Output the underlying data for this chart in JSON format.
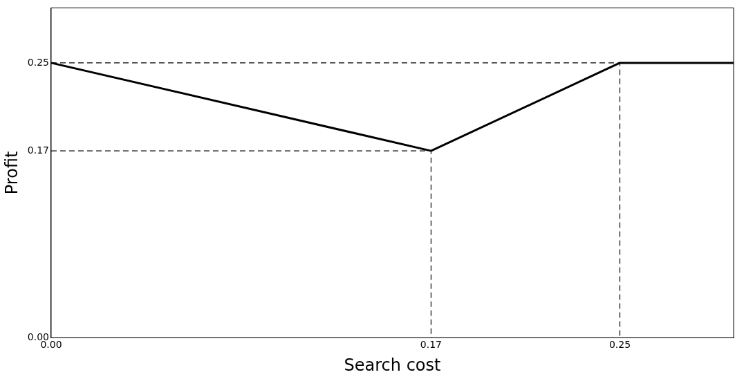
{
  "chart_data": {
    "type": "line",
    "xlabel": "Search cost",
    "ylabel": "Profit",
    "xlim": [
      0,
      0.3
    ],
    "ylim": [
      0,
      0.3
    ],
    "xticks": [
      {
        "value": 0,
        "label": "0.00"
      },
      {
        "value": 0.167,
        "label": "0.17"
      },
      0.25
    ],
    "yticks": [
      {
        "value": 0,
        "label": "0.00"
      },
      0.17,
      0.25
    ],
    "grid": false,
    "legend": false,
    "marker": "none",
    "series": [
      {
        "color": "#000000",
        "line_style": "solid",
        "x": [
          0,
          0.167,
          0.25,
          0.3
        ],
        "values": [
          0.25,
          0.17,
          0.25,
          0.25
        ]
      },
      {
        "color": "#000000",
        "line_style": "dashed",
        "x": [
          0,
          0.167,
          0.167
        ],
        "values": [
          0.17,
          0.17,
          0
        ]
      },
      {
        "color": "#000000",
        "line_style": "dashed",
        "x": [
          0,
          0.25,
          0.25
        ],
        "values": [
          0.25,
          0.25,
          0
        ]
      }
    ]
  }
}
